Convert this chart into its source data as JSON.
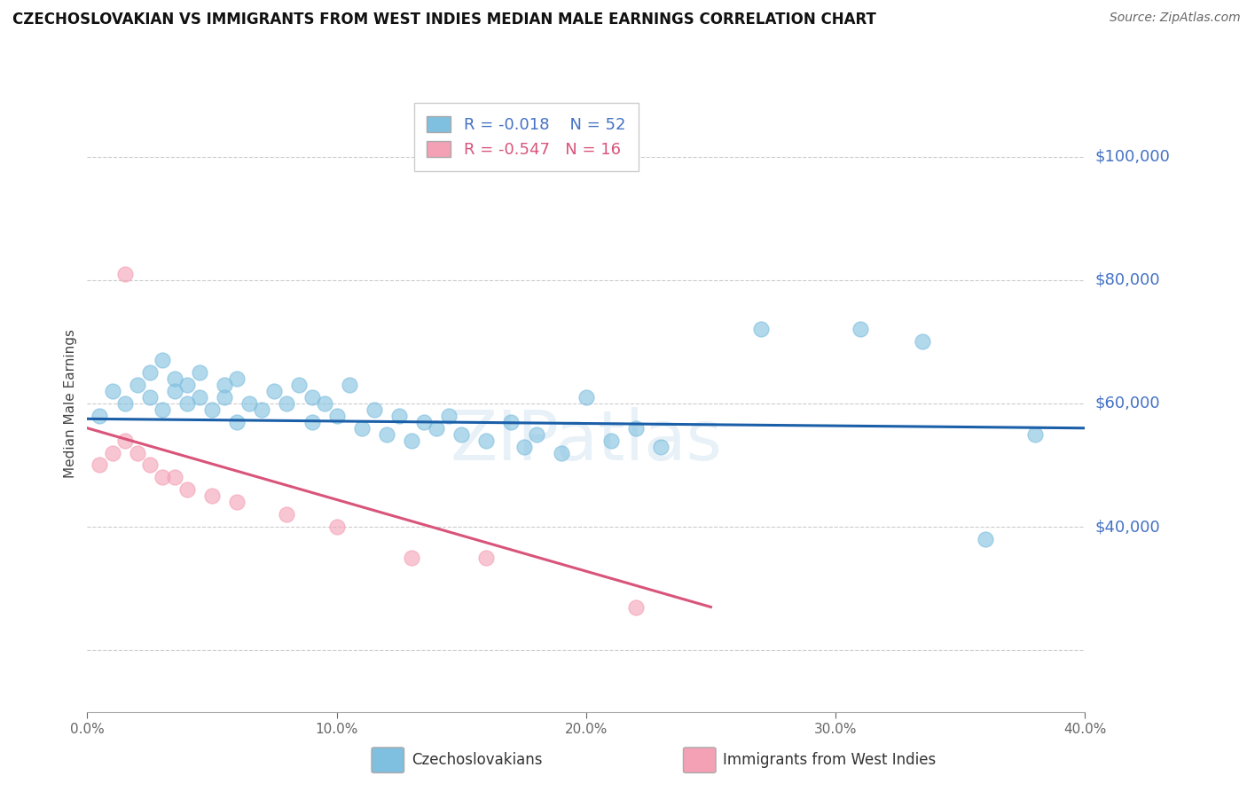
{
  "title": "CZECHOSLOVAKIAN VS IMMIGRANTS FROM WEST INDIES MEDIAN MALE EARNINGS CORRELATION CHART",
  "source": "Source: ZipAtlas.com",
  "ylabel": "Median Male Earnings",
  "xlim": [
    0.0,
    0.4
  ],
  "ylim": [
    10000,
    110000
  ],
  "yticks": [
    20000,
    40000,
    60000,
    80000,
    100000
  ],
  "ytick_labels": [
    "",
    "$40,000",
    "$60,000",
    "$80,000",
    "$100,000"
  ],
  "xticks": [
    0.0,
    0.1,
    0.2,
    0.3,
    0.4
  ],
  "xtick_labels": [
    "0.0%",
    "10.0%",
    "20.0%",
    "30.0%",
    "40.0%"
  ],
  "blue_R": -0.018,
  "blue_N": 52,
  "pink_R": -0.547,
  "pink_N": 16,
  "blue_color": "#7fbfdf",
  "pink_color": "#f4a0b5",
  "blue_line_color": "#1a5fa8",
  "pink_line_color": "#d9547a",
  "grid_color": "#cccccc",
  "bg_color": "#ffffff",
  "watermark": "ZIPatlas",
  "blue_scatter_x": [
    0.005,
    0.01,
    0.015,
    0.02,
    0.025,
    0.025,
    0.03,
    0.03,
    0.035,
    0.035,
    0.04,
    0.04,
    0.045,
    0.045,
    0.05,
    0.055,
    0.055,
    0.06,
    0.06,
    0.065,
    0.07,
    0.075,
    0.08,
    0.085,
    0.09,
    0.09,
    0.095,
    0.1,
    0.105,
    0.11,
    0.115,
    0.12,
    0.125,
    0.13,
    0.135,
    0.14,
    0.145,
    0.15,
    0.16,
    0.17,
    0.175,
    0.18,
    0.19,
    0.2,
    0.21,
    0.22,
    0.23,
    0.27,
    0.31,
    0.335,
    0.36,
    0.38
  ],
  "blue_scatter_y": [
    58000,
    62000,
    60000,
    63000,
    65000,
    61000,
    67000,
    59000,
    64000,
    62000,
    60000,
    63000,
    61000,
    65000,
    59000,
    63000,
    61000,
    57000,
    64000,
    60000,
    59000,
    62000,
    60000,
    63000,
    57000,
    61000,
    60000,
    58000,
    63000,
    56000,
    59000,
    55000,
    58000,
    54000,
    57000,
    56000,
    58000,
    55000,
    54000,
    57000,
    53000,
    55000,
    52000,
    61000,
    54000,
    56000,
    53000,
    72000,
    72000,
    70000,
    38000,
    55000
  ],
  "pink_scatter_x": [
    0.005,
    0.01,
    0.015,
    0.015,
    0.02,
    0.025,
    0.03,
    0.035,
    0.04,
    0.05,
    0.06,
    0.08,
    0.1,
    0.13,
    0.16,
    0.22
  ],
  "pink_scatter_y": [
    50000,
    52000,
    54000,
    81000,
    52000,
    50000,
    48000,
    48000,
    46000,
    45000,
    44000,
    42000,
    40000,
    35000,
    35000,
    27000
  ],
  "blue_line_x": [
    0.0,
    0.4
  ],
  "blue_line_y": [
    57500,
    56000
  ],
  "pink_line_x": [
    0.0,
    0.25
  ],
  "pink_line_y": [
    56000,
    27000
  ]
}
